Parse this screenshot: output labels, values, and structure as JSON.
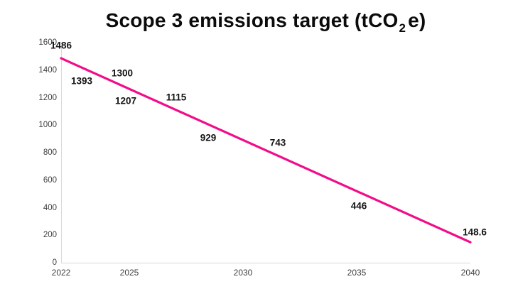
{
  "title": {
    "prefix": "Scope 3 emissions target (tCO",
    "subscript": "2",
    "suffix": "e)"
  },
  "colors": {
    "line": "#F20D88",
    "axis": "#d9d9d9",
    "tick_text": "#3f3f3f",
    "label_text": "#141414",
    "background": "#ffffff"
  },
  "chart_data": {
    "type": "line",
    "title": "Scope 3 emissions target (tCO2e)",
    "xlabel": "",
    "ylabel": "",
    "xlim": [
      2022,
      2040
    ],
    "ylim": [
      0,
      1600
    ],
    "x_ticks": [
      2022,
      2025,
      2030,
      2035,
      2040
    ],
    "y_ticks": [
      0,
      200,
      400,
      600,
      800,
      1000,
      1200,
      1400,
      1600
    ],
    "grid": false,
    "legend": false,
    "series": [
      {
        "name": "Scope 3 emissions target",
        "color": "#F20D88",
        "x": [
          2022,
          2040
        ],
        "y": [
          1486,
          148.6
        ]
      }
    ],
    "point_labels": [
      {
        "text": "1486",
        "value": 1486,
        "year": 2022,
        "placement": "above",
        "dx": 0
      },
      {
        "text": "1393",
        "value": 1393,
        "year": 2023.25,
        "placement": "below",
        "dx": -11
      },
      {
        "text": "1300",
        "value": 1300,
        "year": 2024.5,
        "placement": "above",
        "dx": 6
      },
      {
        "text": "1207",
        "value": 1207,
        "year": 2025.75,
        "placement": "below",
        "dx": -29
      },
      {
        "text": "1115",
        "value": 1115,
        "year": 2027,
        "placement": "above",
        "dx": 2
      },
      {
        "text": "929",
        "value": 929,
        "year": 2029.5,
        "placement": "below",
        "dx": -33
      },
      {
        "text": "743",
        "value": 743,
        "year": 2032,
        "placement": "above",
        "dx": -15
      },
      {
        "text": "446",
        "value": 446,
        "year": 2036,
        "placement": "below",
        "dx": -29
      },
      {
        "text": "148.6",
        "value": 148.6,
        "year": 2040,
        "placement": "end",
        "dx": 6
      }
    ]
  }
}
